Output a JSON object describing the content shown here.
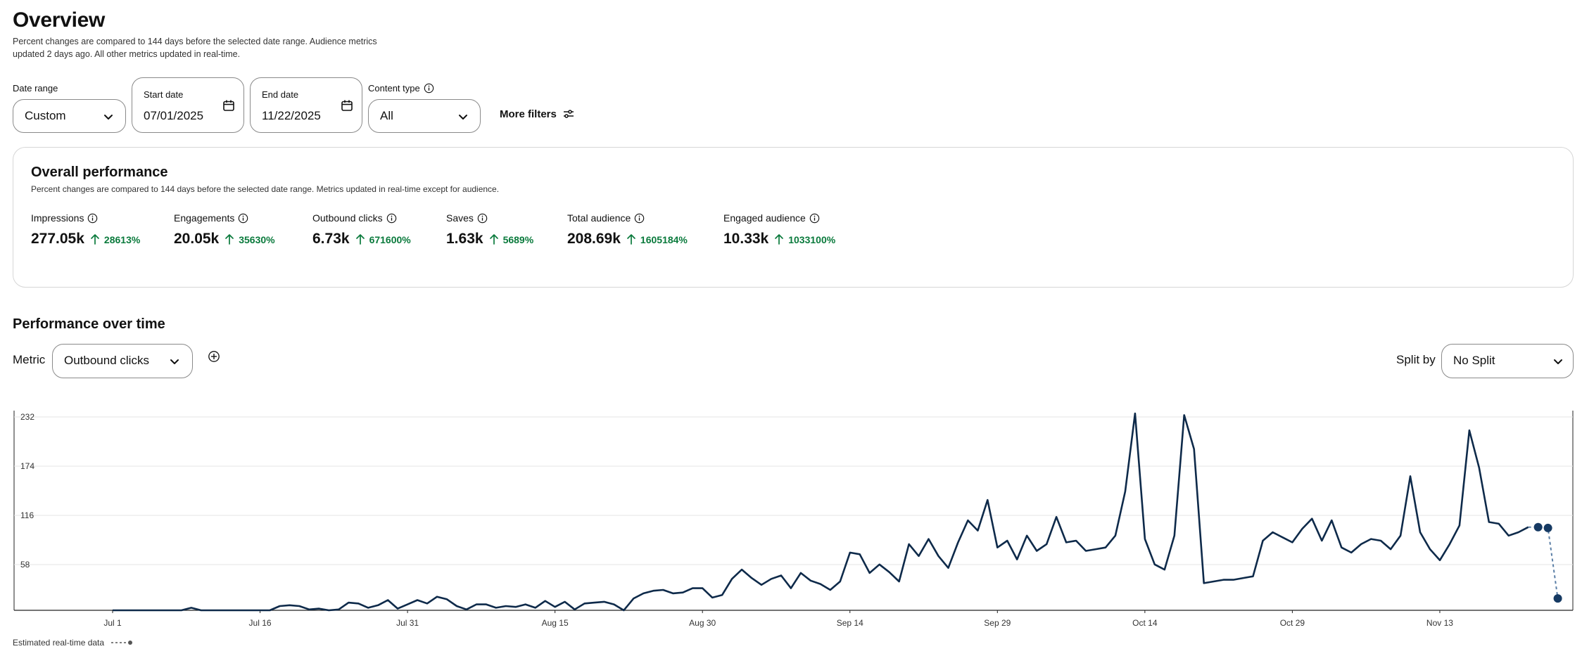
{
  "header": {
    "title": "Overview",
    "subtitle": "Percent changes are compared to 144 days before the selected date range. Audience metrics updated 2 days ago. All other metrics updated in real-time."
  },
  "filters": {
    "date_range_label": "Date range",
    "date_range_value": "Custom",
    "start_date_label": "Start date",
    "start_date_value": "07/01/2025",
    "end_date_label": "End date",
    "end_date_value": "11/22/2025",
    "content_type_label": "Content type",
    "content_type_value": "All",
    "more_filters": "More filters"
  },
  "overall": {
    "title": "Overall performance",
    "subtitle": "Percent changes are compared to 144 days before the selected date range. Metrics updated in real-time except for audience.",
    "metrics": [
      {
        "label": "Impressions",
        "value": "277.05k",
        "change": "28613%"
      },
      {
        "label": "Engagements",
        "value": "20.05k",
        "change": "35630%"
      },
      {
        "label": "Outbound clicks",
        "value": "6.73k",
        "change": "671600%"
      },
      {
        "label": "Saves",
        "value": "1.63k",
        "change": "5689%"
      },
      {
        "label": "Total audience",
        "value": "208.69k",
        "change": "1605184%"
      },
      {
        "label": "Engaged audience",
        "value": "10.33k",
        "change": "1033100%"
      }
    ],
    "positive_color": "#0a7a3c"
  },
  "performance": {
    "title": "Performance over time",
    "metric_label": "Metric",
    "metric_value": "Outbound clicks",
    "split_label": "Split by",
    "split_value": "No Split"
  },
  "legend": {
    "estimated_label": "Estimated real-time data"
  },
  "chart_data": {
    "type": "line",
    "line_color": "#0e2a4a",
    "y_ticks": [
      "232",
      "174",
      "116",
      "58"
    ],
    "ylim": [
      0,
      232
    ],
    "x_ticks": [
      "Jul 1",
      "Jul 16",
      "Jul 31",
      "Aug 15",
      "Aug 30",
      "Sep 14",
      "Sep 29",
      "Oct 14",
      "Oct 29",
      "Nov 13"
    ],
    "x_start": "Jul 1",
    "grid": true,
    "series": [
      {
        "values": [
          0,
          0,
          0,
          0,
          0,
          0,
          0,
          0,
          3,
          0,
          0,
          0,
          0,
          0,
          0,
          0,
          0,
          5,
          6,
          5,
          1,
          2,
          0,
          1,
          9,
          8,
          3,
          6,
          12,
          2,
          7,
          12,
          8,
          16,
          13,
          5,
          1,
          7,
          7,
          3,
          5,
          4,
          7,
          3,
          11,
          4,
          10,
          1,
          8,
          9,
          10,
          7,
          0,
          14,
          20,
          23,
          24,
          20,
          21,
          26,
          26,
          15,
          18,
          37,
          48,
          38,
          30,
          37,
          41,
          26,
          44,
          35,
          31,
          24,
          34,
          68,
          66,
          44,
          54,
          45,
          34,
          78,
          64,
          84,
          64,
          50,
          80,
          106,
          94,
          130,
          74,
          82,
          60,
          88,
          70,
          78,
          110,
          80,
          82,
          70,
          72,
          74,
          88,
          140,
          232,
          84,
          54,
          48,
          88,
          230,
          190,
          32,
          34,
          36,
          36,
          38,
          40,
          82,
          92,
          86,
          80,
          96,
          108,
          82,
          106,
          74,
          68,
          78,
          84,
          82,
          72,
          88,
          158,
          92,
          72,
          59,
          78,
          100,
          212,
          168,
          104,
          102,
          88,
          92,
          98
        ],
        "estimated": [
          98,
          97,
          14
        ]
      }
    ]
  }
}
